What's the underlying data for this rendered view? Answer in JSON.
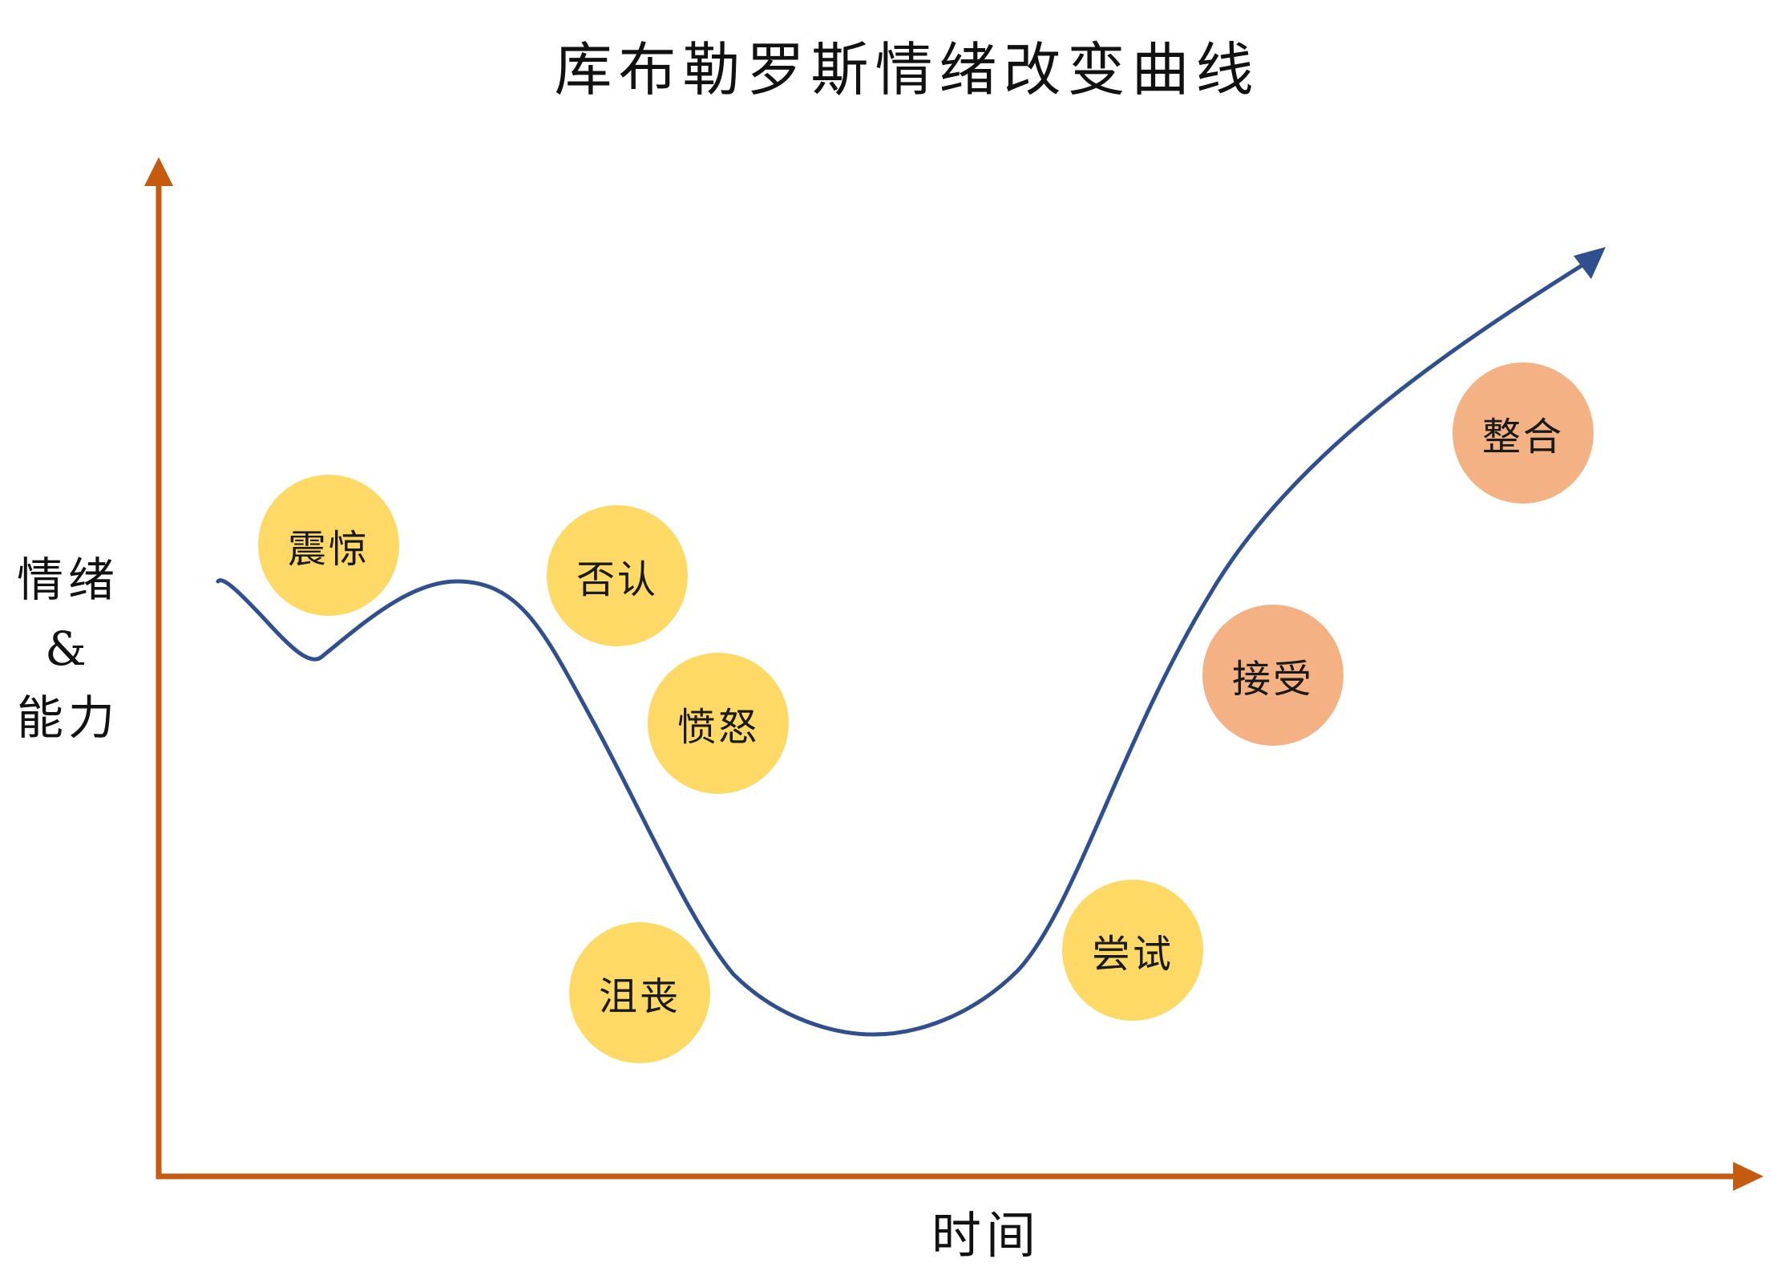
{
  "title": "库布勒罗斯情绪改变曲线",
  "y_axis": {
    "line1": "情绪",
    "line2": "&",
    "line3": "能力"
  },
  "x_axis": {
    "label": "时间"
  },
  "colors": {
    "axis": "#C55A11",
    "curve": "#2F4F8F",
    "stage_yellow": "#FFD966",
    "stage_orange": "#F4B183"
  },
  "stages": [
    {
      "label": "震惊",
      "color": "#FFD966"
    },
    {
      "label": "否认",
      "color": "#FFD966"
    },
    {
      "label": "愤怒",
      "color": "#FFD966"
    },
    {
      "label": "沮丧",
      "color": "#FFD966"
    },
    {
      "label": "尝试",
      "color": "#FFD966"
    },
    {
      "label": "接受",
      "color": "#F4B183"
    },
    {
      "label": "整合",
      "color": "#F4B183"
    }
  ]
}
